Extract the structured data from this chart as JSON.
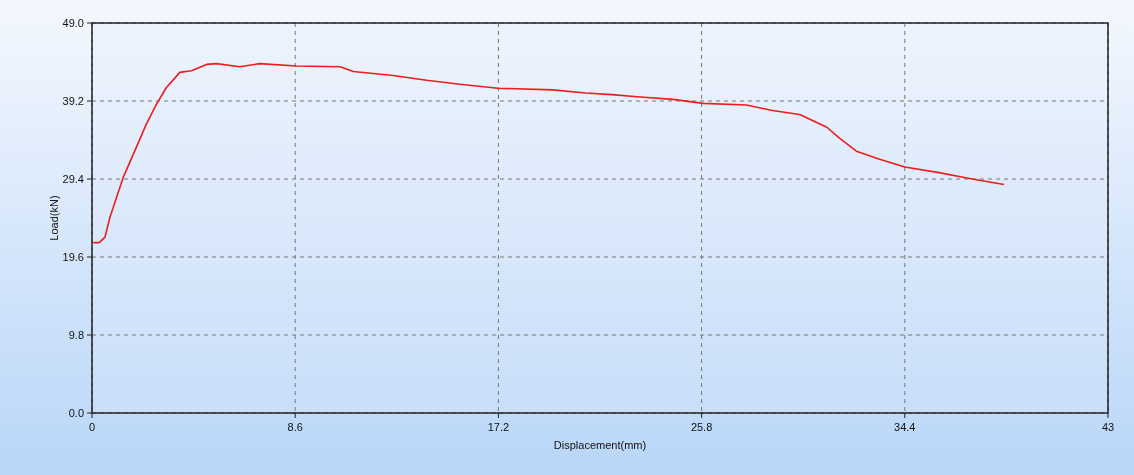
{
  "chart_data": {
    "type": "line",
    "xlabel": "Displacement(mm)",
    "ylabel": "Load(kN)",
    "xlim": [
      0,
      43
    ],
    "xticks": [
      0,
      8.6,
      17.2,
      25.8,
      34.4,
      43
    ],
    "ylim": [
      0,
      49
    ],
    "yticks": [
      {
        "value": 0,
        "label": "0.0"
      },
      9.8,
      19.6,
      29.4,
      39.2,
      {
        "value": 49,
        "label": "49.0"
      }
    ],
    "grid": true,
    "marker": "none",
    "line_style": "solid",
    "series": [
      {
        "color": "#ee1c1c",
        "x": [
          0.05,
          0.3,
          0.55,
          0.76,
          1.32,
          1.88,
          2.3,
          2.73,
          3.15,
          3.72,
          4.21,
          4.85,
          5.27,
          6.25,
          7.1,
          8.65,
          10.5,
          11.06,
          12.75,
          14.16,
          15.57,
          17.17,
          19.5,
          20.9,
          22.0,
          23.2,
          24.6,
          25.87,
          27.7,
          28.8,
          29.95,
          31.1,
          31.65,
          32.35,
          33.3,
          34.4,
          35.85,
          37.25,
          38.6
        ],
        "values": [
          21.4,
          21.4,
          22.1,
          24.6,
          29.6,
          33.4,
          36.3,
          38.8,
          40.9,
          42.8,
          43.0,
          43.8,
          43.9,
          43.5,
          43.9,
          43.6,
          43.5,
          42.9,
          42.4,
          41.8,
          41.3,
          40.8,
          40.6,
          40.2,
          40.0,
          39.7,
          39.4,
          38.9,
          38.7,
          38.0,
          37.5,
          35.9,
          34.5,
          32.9,
          31.9,
          30.9,
          30.2,
          29.4,
          28.7
        ]
      }
    ]
  }
}
